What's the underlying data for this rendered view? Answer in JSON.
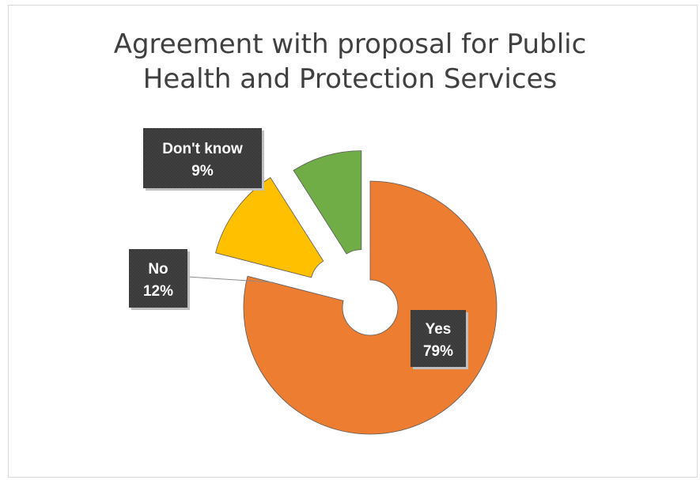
{
  "chart_data": {
    "type": "pie",
    "title_lines": [
      "Agreement with proposal for Public",
      "Health and Protection Services"
    ],
    "slices": [
      {
        "category": "Yes",
        "value": 79,
        "label": "79%",
        "color": "#ED7D31"
      },
      {
        "category": "No",
        "value": 12,
        "label": "12%",
        "color": "#FFC000"
      },
      {
        "category": "Don't know",
        "value": 9,
        "label": "9%",
        "color": "#70AD47"
      }
    ]
  }
}
